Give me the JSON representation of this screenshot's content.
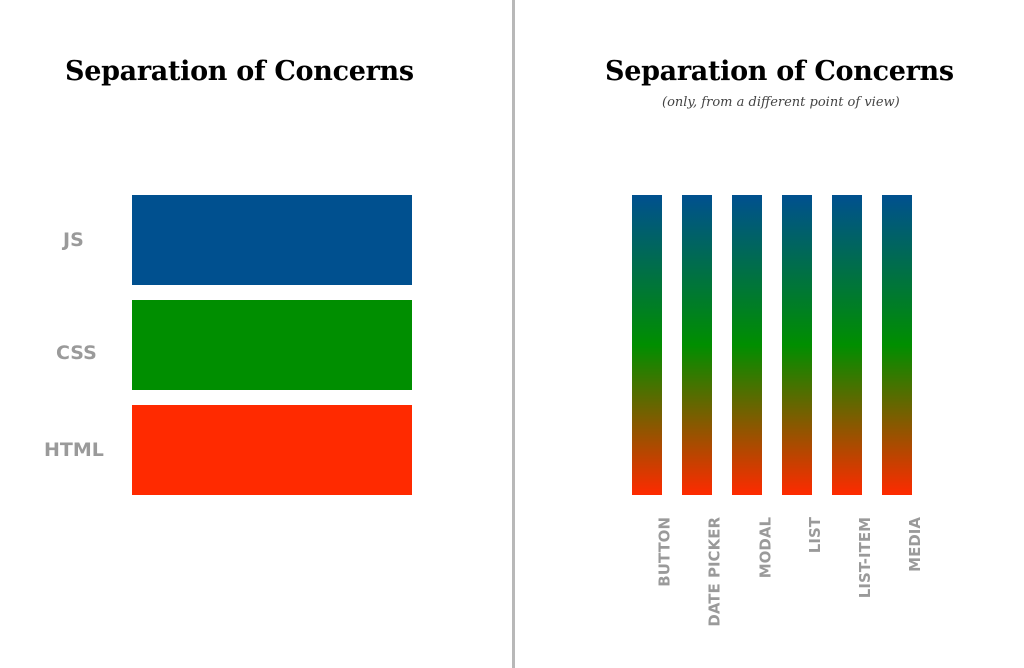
{
  "left_panel": {
    "title": "Separation of Concerns",
    "layers": [
      {
        "label": "JS",
        "color": "#00508f"
      },
      {
        "label": "CSS",
        "color": "#008e00"
      },
      {
        "label": "HTML",
        "color": "#ff2a00"
      }
    ]
  },
  "right_panel": {
    "title": "Separation of Concerns",
    "subtitle": "(only, from a different point of view)",
    "components": [
      "BUTTON",
      "DATE PICKER",
      "MODAL",
      "LIST",
      "LIST-ITEM",
      "MEDIA"
    ],
    "gradient_colors": [
      "#00508f",
      "#008e00",
      "#ff2a00"
    ]
  }
}
